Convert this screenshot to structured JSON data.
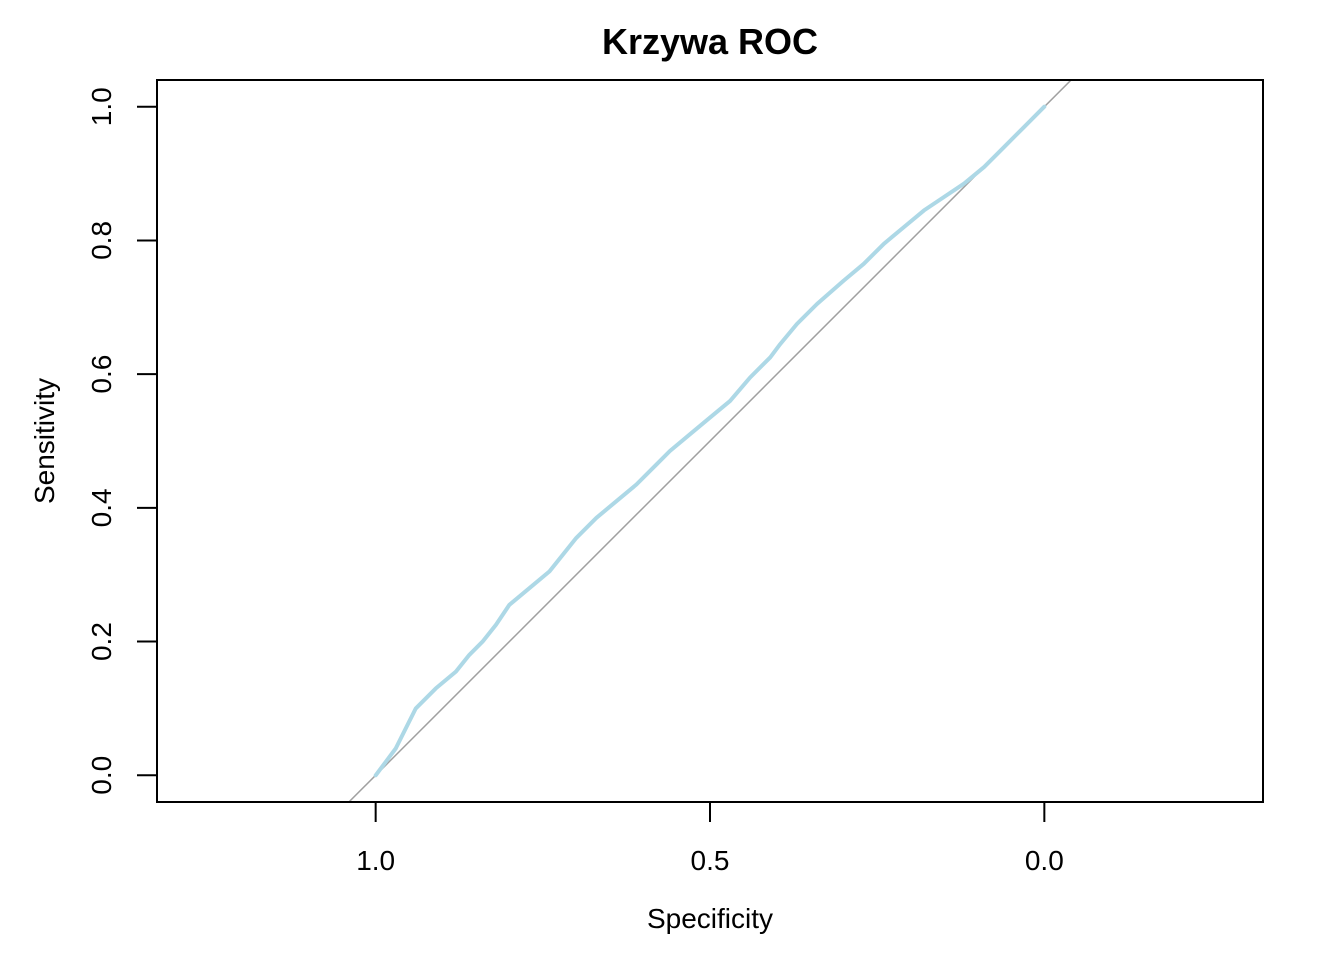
{
  "colors": {
    "roc_curve": "#ADD8E6",
    "diagonal": "#A0A0A0",
    "axis": "#000000",
    "background": "#FFFFFF"
  },
  "chart_data": {
    "type": "line",
    "title": "Krzywa ROC",
    "xlabel": "Specificity",
    "ylabel": "Sensitivity",
    "x_reversed": true,
    "xlim": [
      1.327,
      -0.327
    ],
    "ylim": [
      -0.04,
      1.04
    ],
    "x_ticks": [
      {
        "value": 1.0,
        "label": "1.0"
      },
      {
        "value": 0.5,
        "label": "0.5"
      },
      {
        "value": 0.0,
        "label": "0.0"
      }
    ],
    "y_ticks": [
      {
        "value": 0.0,
        "label": "0.0"
      },
      {
        "value": 0.2,
        "label": "0.2"
      },
      {
        "value": 0.4,
        "label": "0.4"
      },
      {
        "value": 0.6,
        "label": "0.6"
      },
      {
        "value": 0.8,
        "label": "0.8"
      },
      {
        "value": 1.0,
        "label": "1.0"
      }
    ],
    "grid": false,
    "legend": "none",
    "reference_line": {
      "type": "diagonal",
      "description": "sensitivity = 1 - specificity"
    },
    "series": [
      {
        "specificity": [
          1.0,
          0.985,
          0.97,
          0.96,
          0.94,
          0.91,
          0.88,
          0.86,
          0.84,
          0.82,
          0.8,
          0.77,
          0.74,
          0.72,
          0.7,
          0.67,
          0.64,
          0.61,
          0.58,
          0.56,
          0.53,
          0.5,
          0.47,
          0.44,
          0.41,
          0.395,
          0.37,
          0.34,
          0.3,
          0.27,
          0.24,
          0.21,
          0.18,
          0.15,
          0.12,
          0.09,
          0.06,
          0.03,
          0.0
        ],
        "sensitivity": [
          0.0,
          0.02,
          0.04,
          0.06,
          0.1,
          0.13,
          0.155,
          0.18,
          0.2,
          0.225,
          0.255,
          0.28,
          0.305,
          0.33,
          0.355,
          0.385,
          0.41,
          0.435,
          0.465,
          0.485,
          0.51,
          0.535,
          0.56,
          0.595,
          0.625,
          0.645,
          0.675,
          0.705,
          0.74,
          0.765,
          0.795,
          0.82,
          0.845,
          0.865,
          0.885,
          0.91,
          0.94,
          0.97,
          1.0
        ]
      }
    ]
  }
}
